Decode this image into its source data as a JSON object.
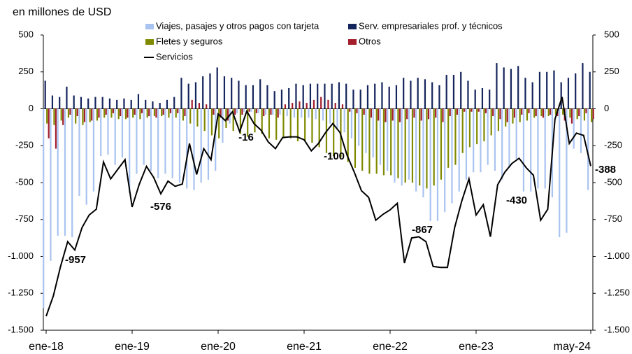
{
  "chart_data": {
    "type": "bar-line",
    "ylabel": "en millones de USD",
    "categories": [
      "ene-18",
      null,
      null,
      null,
      null,
      null,
      null,
      null,
      null,
      null,
      null,
      null,
      "ene-19",
      null,
      null,
      null,
      null,
      null,
      null,
      null,
      null,
      null,
      null,
      null,
      "ene-20",
      null,
      null,
      null,
      null,
      null,
      null,
      null,
      null,
      null,
      null,
      null,
      "ene-21",
      null,
      null,
      null,
      null,
      null,
      null,
      null,
      null,
      null,
      null,
      null,
      "ene-22",
      null,
      null,
      null,
      null,
      null,
      null,
      null,
      null,
      null,
      null,
      null,
      "ene-23",
      null,
      null,
      null,
      null,
      null,
      null,
      null,
      null,
      null,
      null,
      null,
      null,
      null,
      null,
      null,
      "may-24"
    ],
    "series": [
      {
        "name": "Viajes, pasajes y otros pagos con tarjeta",
        "kind": "bar",
        "color": "#a9c3f0",
        "values": [
          -1350,
          -1030,
          -860,
          -860,
          -870,
          -590,
          -650,
          -560,
          -320,
          -310,
          -380,
          -330,
          -570,
          -440,
          -380,
          -420,
          -470,
          -440,
          -470,
          -500,
          -540,
          -550,
          -500,
          -480,
          -420,
          -230,
          -100,
          -30,
          -20,
          -20,
          -30,
          -40,
          -40,
          -40,
          -50,
          -60,
          -60,
          -60,
          -70,
          -80,
          -100,
          -130,
          -160,
          -200,
          -250,
          -300,
          -330,
          -380,
          -420,
          -500,
          -520,
          -480,
          -560,
          -600,
          -760,
          -760,
          -700,
          -640,
          -560,
          -480,
          -430,
          -430,
          -380,
          -420,
          -480,
          -400,
          -340,
          -560,
          -560,
          -540,
          -540,
          -600,
          -870,
          -840,
          -270,
          -300,
          -550
        ]
      },
      {
        "name": "Serv. empresariales prof. y técnicos",
        "kind": "bar",
        "color": "#14245c",
        "values": [
          190,
          90,
          80,
          150,
          90,
          80,
          70,
          80,
          80,
          70,
          60,
          70,
          60,
          100,
          60,
          50,
          40,
          60,
          80,
          210,
          170,
          180,
          220,
          240,
          280,
          220,
          210,
          190,
          160,
          160,
          200,
          160,
          120,
          130,
          140,
          170,
          160,
          170,
          170,
          170,
          170,
          180,
          170,
          130,
          130,
          160,
          170,
          180,
          150,
          160,
          210,
          190,
          210,
          200,
          180,
          160,
          230,
          230,
          250,
          190,
          130,
          140,
          130,
          310,
          280,
          270,
          290,
          210,
          180,
          250,
          250,
          260,
          180,
          210,
          240,
          310,
          250
        ]
      },
      {
        "name": "Fletes y seguros",
        "kind": "bar",
        "color": "#7f8a00",
        "values": [
          -100,
          -110,
          -80,
          -60,
          -100,
          -110,
          -90,
          -80,
          -60,
          -60,
          -70,
          -70,
          -60,
          -70,
          -60,
          -50,
          -50,
          -60,
          -60,
          -80,
          -100,
          -120,
          -150,
          -180,
          -200,
          -130,
          -150,
          -170,
          -190,
          -160,
          -170,
          -200,
          -210,
          -200,
          -200,
          -220,
          -220,
          -230,
          -260,
          -300,
          -320,
          -330,
          -360,
          -400,
          -420,
          -440,
          -440,
          -450,
          -450,
          -470,
          -500,
          -500,
          -520,
          -540,
          -520,
          -480,
          -400,
          -380,
          -300,
          -260,
          -240,
          -220,
          -180,
          -150,
          -120,
          -100,
          -90,
          -80,
          -60,
          -50,
          -50,
          -40,
          -40,
          -60,
          -70,
          -80,
          -90
        ]
      },
      {
        "name": "Otros",
        "kind": "bar",
        "color": "#a31d2b",
        "values": [
          -200,
          -270,
          -110,
          -40,
          -50,
          -90,
          -80,
          -60,
          -40,
          -30,
          -50,
          -60,
          -40,
          -30,
          -50,
          -60,
          -40,
          -30,
          -30,
          -50,
          60,
          40,
          30,
          -40,
          -60,
          -80,
          -40,
          -40,
          -20,
          -30,
          -50,
          -40,
          -60,
          30,
          40,
          50,
          40,
          60,
          80,
          60,
          40,
          30,
          -20,
          -30,
          -40,
          -60,
          -80,
          -90,
          -80,
          -90,
          -70,
          -60,
          -80,
          -70,
          -60,
          -90,
          -50,
          -40,
          -20,
          -20,
          -20,
          -30,
          -50,
          -70,
          -90,
          -60,
          -40,
          -30,
          -50,
          -60,
          -40,
          -50,
          -80,
          -100,
          -50,
          -30,
          -70
        ]
      },
      {
        "name": "Servicios",
        "kind": "line",
        "color": "#000000",
        "values": [
          -1405,
          -1268,
          -1070,
          -900,
          -957,
          -805,
          -720,
          -680,
          -360,
          -475,
          -410,
          -345,
          -665,
          -510,
          -390,
          -465,
          -576,
          -490,
          -525,
          -510,
          -235,
          -445,
          -270,
          -345,
          -35,
          -80,
          -20,
          -155,
          -16,
          -100,
          -145,
          -225,
          -270,
          -195,
          -190,
          -190,
          -210,
          -285,
          -235,
          -160,
          -100,
          -160,
          -315,
          -430,
          -555,
          -600,
          -755,
          -715,
          -685,
          -640,
          -1045,
          -875,
          -867,
          -900,
          -1068,
          -1075,
          -1075,
          -805,
          -625,
          -475,
          -720,
          -650,
          -867,
          -515,
          -430,
          -370,
          -335,
          -400,
          -450,
          -755,
          -680,
          -70,
          80,
          -235,
          -165,
          -180,
          -388
        ]
      }
    ],
    "annotations": [
      "-957",
      "-576",
      "-16",
      "-100",
      "-867",
      "-430",
      "-388"
    ],
    "ylim": [
      -1500,
      500
    ],
    "yticks": [
      {
        "value": -1500,
        "label": "-1.500"
      },
      {
        "value": -1250,
        "label": "-1.250"
      },
      {
        "value": -1000,
        "label": "-1.000"
      },
      -750,
      -500,
      -250,
      0,
      250,
      500
    ],
    "y2lim": [
      -1500,
      500
    ],
    "y2ticks": [
      {
        "value": -1500,
        "label": "-1.500"
      },
      {
        "value": -1250,
        "label": "-1.250"
      },
      {
        "value": -1000,
        "label": "-1.000"
      },
      -750,
      -500,
      -250,
      0,
      250,
      500
    ]
  }
}
